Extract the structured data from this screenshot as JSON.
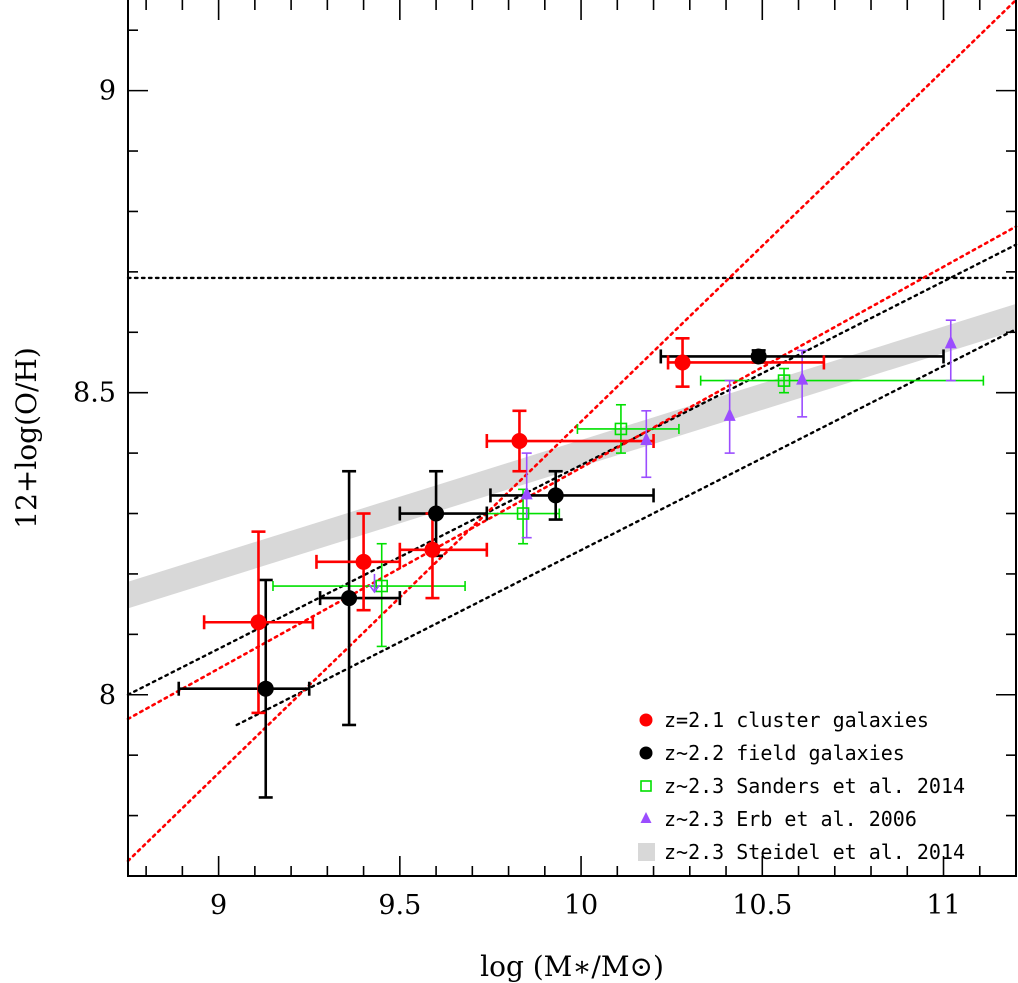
{
  "chart_data": {
    "type": "scatter",
    "title": "",
    "xlabel": "log (M∗/M⊙)",
    "ylabel": "12+log(O/H)",
    "xlim": [
      8.75,
      11.2
    ],
    "ylim": [
      7.7,
      9.15
    ],
    "x_ticks": [
      "9",
      "9.5",
      "10",
      "10.5",
      "11"
    ],
    "x_tick_values": [
      9,
      9.5,
      10,
      10.5,
      11
    ],
    "y_ticks": [
      "8",
      "8.5",
      "9"
    ],
    "y_tick_values": [
      8,
      8.5,
      9
    ],
    "legend_position": "bottom-right",
    "colors": {
      "cluster": "#ff0000",
      "field": "#000000",
      "sanders": "#00e000",
      "erb": "#9b4dff",
      "steidel": "#d8d8d8",
      "fit": "#ff0000"
    },
    "series": [
      {
        "name": "z=2.1 cluster galaxies",
        "marker": "circle",
        "points": [
          {
            "x": 9.11,
            "y": 8.12,
            "xerr": [
              0.15,
              0.15
            ],
            "yerr": [
              0.15,
              0.15
            ]
          },
          {
            "x": 9.4,
            "y": 8.22,
            "xerr": [
              0.13,
              0.1
            ],
            "yerr": [
              0.08,
              0.08
            ]
          },
          {
            "x": 9.59,
            "y": 8.24,
            "xerr": [
              0.09,
              0.15
            ],
            "yerr": [
              0.08,
              0.06
            ]
          },
          {
            "x": 9.83,
            "y": 8.42,
            "xerr": [
              0.09,
              0.37
            ],
            "yerr": [
              0.05,
              0.05
            ]
          },
          {
            "x": 10.28,
            "y": 8.55,
            "xerr": [
              0.04,
              0.39
            ],
            "yerr": [
              0.04,
              0.04
            ]
          }
        ]
      },
      {
        "name": "z~2.2 field galaxies",
        "marker": "circle",
        "points": [
          {
            "x": 9.13,
            "y": 8.01,
            "xerr": [
              0.24,
              0.12
            ],
            "yerr": [
              0.18,
              0.18
            ]
          },
          {
            "x": 9.36,
            "y": 8.16,
            "xerr": [
              0.08,
              0.14
            ],
            "yerr": [
              0.21,
              0.21
            ]
          },
          {
            "x": 9.6,
            "y": 8.3,
            "xerr": [
              0.1,
              0.14
            ],
            "yerr": [
              0.07,
              0.07
            ]
          },
          {
            "x": 9.93,
            "y": 8.33,
            "xerr": [
              0.18,
              0.27
            ],
            "yerr": [
              0.04,
              0.04
            ]
          },
          {
            "x": 10.49,
            "y": 8.56,
            "xerr": [
              0.27,
              0.51
            ],
            "yerr": [
              0.01,
              0.01
            ]
          }
        ]
      },
      {
        "name": "z~2.3 Sanders et al. 2014",
        "marker": "open-square",
        "points": [
          {
            "x": 9.45,
            "y": 8.18,
            "xerr": [
              0.3,
              0.23
            ],
            "yerr": [
              0.1,
              0.07
            ]
          },
          {
            "x": 9.84,
            "y": 8.3,
            "xerr": [
              0.1,
              0.1
            ],
            "yerr": [
              0.05,
              0.04
            ]
          },
          {
            "x": 10.11,
            "y": 8.44,
            "xerr": [
              0.12,
              0.16
            ],
            "yerr": [
              0.04,
              0.04
            ]
          },
          {
            "x": 10.56,
            "y": 8.52,
            "xerr": [
              0.23,
              0.55
            ],
            "yerr": [
              0.02,
              0.02
            ]
          }
        ]
      },
      {
        "name": "z~2.3 Erb et al. 2006",
        "marker": "triangle",
        "points": [
          {
            "x": 9.85,
            "y": 8.33,
            "yerr": [
              0.07,
              0.07
            ]
          },
          {
            "x": 10.18,
            "y": 8.42,
            "yerr": [
              0.06,
              0.05
            ]
          },
          {
            "x": 10.41,
            "y": 8.46,
            "yerr": [
              0.06,
              0.06
            ]
          },
          {
            "x": 10.61,
            "y": 8.52,
            "yerr": [
              0.06,
              0.05
            ]
          },
          {
            "x": 11.02,
            "y": 8.58,
            "yerr": [
              0.06,
              0.04
            ]
          }
        ]
      },
      {
        "name": "z~2.3 Steidel et al. 2014",
        "marker": "band",
        "line": [
          [
            8.75,
            8.165
          ],
          [
            11.2,
            8.625
          ]
        ],
        "halfwidth": 0.022
      }
    ],
    "upper_limit_arrow": {
      "x": 9.43,
      "from": 8.2,
      "to": 8.17
    },
    "reference_lines": [
      {
        "style": "dotted",
        "color": "black",
        "kind": "horizontal",
        "y": 8.69
      },
      {
        "style": "dotted",
        "color": "black",
        "kind": "line",
        "from": [
          8.75,
          8.0
        ],
        "to": [
          11.2,
          8.745
        ]
      },
      {
        "style": "dotted",
        "color": "black",
        "kind": "line",
        "from": [
          9.05,
          7.95
        ],
        "to": [
          11.2,
          8.605
        ]
      },
      {
        "style": "dotted",
        "color": "red",
        "kind": "line",
        "from": [
          8.75,
          7.96
        ],
        "to": [
          11.2,
          8.775
        ]
      },
      {
        "style": "dotted",
        "color": "red",
        "kind": "line",
        "from": [
          8.75,
          7.725
        ],
        "to": [
          11.2,
          9.15
        ]
      }
    ]
  }
}
